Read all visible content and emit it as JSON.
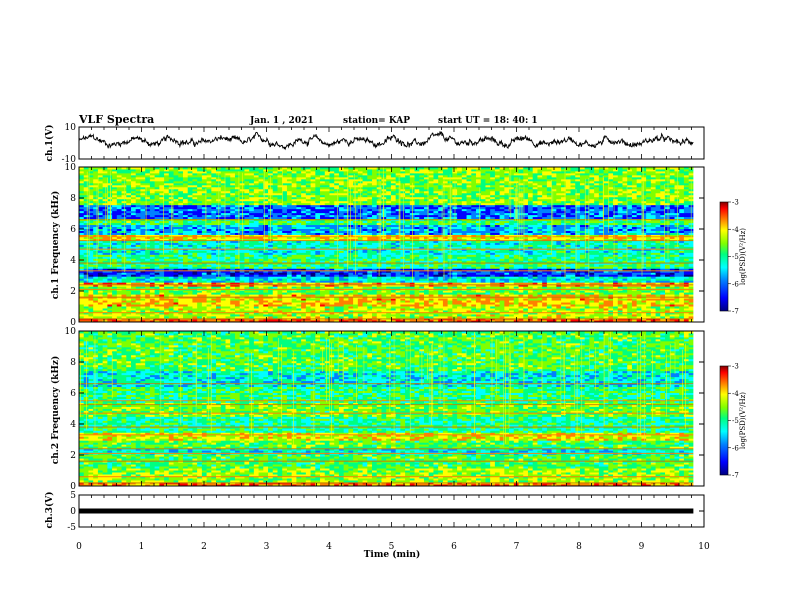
{
  "header": {
    "title": "VLF Spectra",
    "date": "Jan. 1 , 2021",
    "station": "station= KAP",
    "start": "start UT = 18: 40: 1"
  },
  "colors": {
    "spectrum_ramp": [
      "#000080",
      "#0000ff",
      "#0080ff",
      "#00ffff",
      "#00ff80",
      "#80ff00",
      "#ffff00",
      "#ff8000",
      "#ff0000",
      "#800000"
    ],
    "trace": "#000000"
  },
  "chart_data": [
    {
      "type": "line",
      "name": "ch1-waveform",
      "ylabel": "ch.1(V)",
      "ylim": [
        -10,
        10
      ],
      "y_ticks": [
        "10",
        "-10"
      ],
      "x_range": [
        0,
        10
      ],
      "description_values": {
        "typical_range_V": [
          -4,
          6
        ]
      }
    },
    {
      "type": "heatmap",
      "name": "ch1-spectrogram",
      "ylabel": "ch.1 Frequency (kHz)",
      "xlim": [
        0,
        10
      ],
      "ylim": [
        0,
        10
      ],
      "y_ticks": [
        "0",
        "2",
        "4",
        "6",
        "8",
        "10"
      ],
      "data_end_min": 9.83,
      "colorbar": {
        "label": "log(PSD)(V²/Hz)",
        "range": [
          -7,
          -3
        ],
        "ticks": [
          "-3",
          "-4",
          "-5",
          "-6",
          "-7"
        ]
      },
      "bands_kHz": [
        {
          "f0": 0.0,
          "f1": 0.3,
          "level": -3.8
        },
        {
          "f0": 0.3,
          "f1": 1.0,
          "level": -4.6
        },
        {
          "f0": 1.0,
          "f1": 1.8,
          "level": -4.2
        },
        {
          "f0": 1.8,
          "f1": 2.3,
          "level": -4.9
        },
        {
          "f0": 2.3,
          "f1": 2.6,
          "level": -4.0
        },
        {
          "f0": 2.6,
          "f1": 3.0,
          "level": -5.6
        },
        {
          "f0": 3.0,
          "f1": 3.5,
          "level": -6.4
        },
        {
          "f0": 3.5,
          "f1": 4.4,
          "level": -5.2
        },
        {
          "f0": 4.4,
          "f1": 5.2,
          "level": -5.5
        },
        {
          "f0": 5.2,
          "f1": 5.6,
          "level": -4.3
        },
        {
          "f0": 5.6,
          "f1": 6.3,
          "level": -5.9
        },
        {
          "f0": 6.3,
          "f1": 6.7,
          "level": -5.1
        },
        {
          "f0": 6.7,
          "f1": 7.6,
          "level": -6.2
        },
        {
          "f0": 7.6,
          "f1": 10.0,
          "level": -4.8
        }
      ]
    },
    {
      "type": "heatmap",
      "name": "ch2-spectrogram",
      "ylabel": "ch.2 Frequency (kHz)",
      "xlim": [
        0,
        10
      ],
      "ylim": [
        0,
        10
      ],
      "y_ticks": [
        "0",
        "2",
        "4",
        "6",
        "8",
        "10"
      ],
      "data_end_min": 9.83,
      "colorbar": {
        "label": "log(PSD)(V²/Hz)",
        "range": [
          -7,
          -3
        ],
        "ticks": [
          "-3",
          "-4",
          "-5",
          "-6",
          "-7"
        ]
      },
      "bands_kHz": [
        {
          "f0": 0.0,
          "f1": 0.3,
          "level": -3.9
        },
        {
          "f0": 0.3,
          "f1": 1.2,
          "level": -4.7
        },
        {
          "f0": 1.2,
          "f1": 2.0,
          "level": -5.0
        },
        {
          "f0": 2.0,
          "f1": 2.5,
          "level": -5.6
        },
        {
          "f0": 2.5,
          "f1": 3.0,
          "level": -5.0
        },
        {
          "f0": 3.0,
          "f1": 3.5,
          "level": -4.4
        },
        {
          "f0": 3.5,
          "f1": 4.5,
          "level": -5.3
        },
        {
          "f0": 4.5,
          "f1": 5.4,
          "level": -4.9
        },
        {
          "f0": 5.4,
          "f1": 6.4,
          "level": -5.2
        },
        {
          "f0": 6.4,
          "f1": 7.5,
          "level": -5.6
        },
        {
          "f0": 7.5,
          "f1": 10.0,
          "level": -5.0
        }
      ]
    },
    {
      "type": "line",
      "name": "ch3-waveform",
      "ylabel": "ch.3(V)",
      "ylim": [
        -5,
        5
      ],
      "y_ticks": [
        "5",
        "0",
        "-5"
      ],
      "constant_value_V": 0
    }
  ],
  "xaxis": {
    "label": "Time (min)",
    "ticks": [
      "0",
      "1",
      "2",
      "3",
      "4",
      "5",
      "6",
      "7",
      "8",
      "9",
      "10"
    ]
  }
}
